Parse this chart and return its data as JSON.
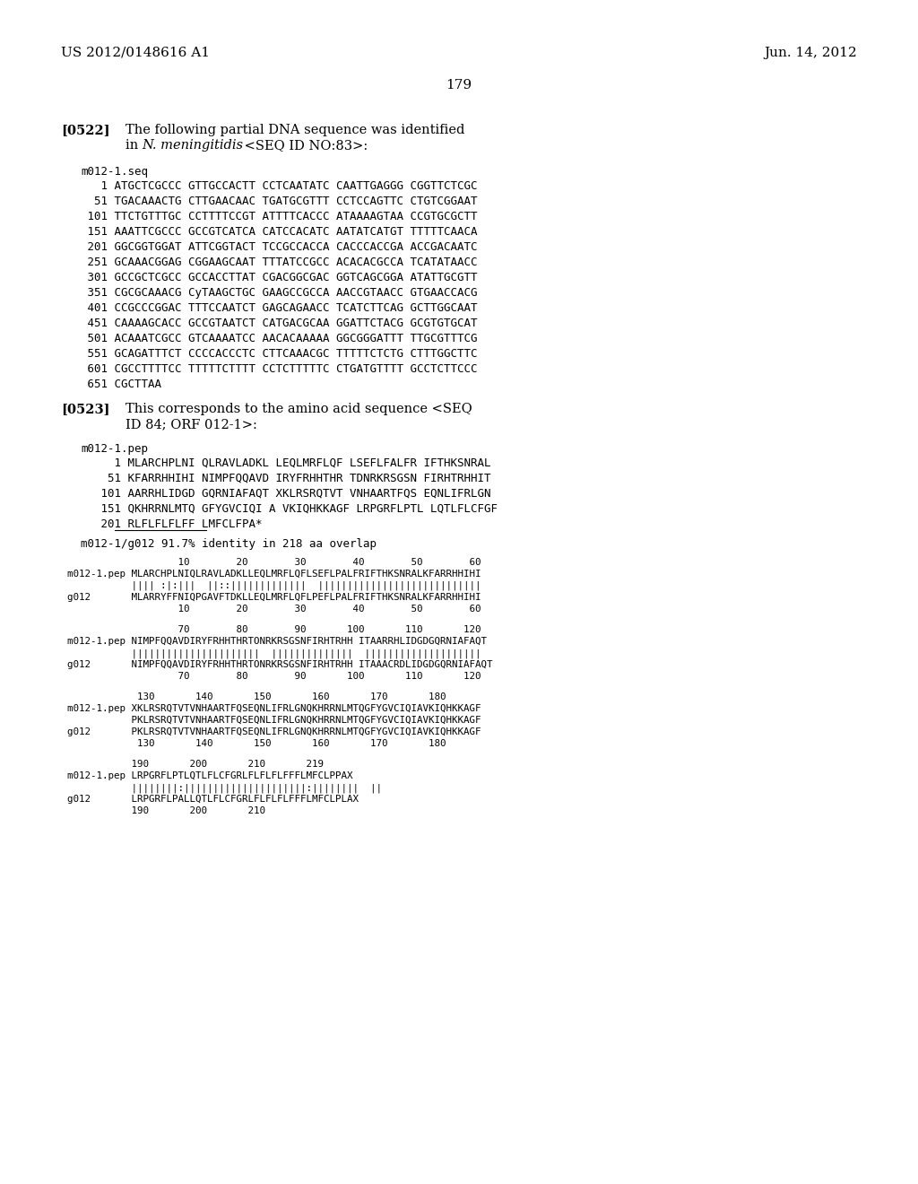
{
  "background_color": "#ffffff",
  "header_left": "US 2012/0148616 A1",
  "header_right": "Jun. 14, 2012",
  "page_number": "179",
  "para522_label": "[0522]",
  "para522_line1": "The following partial DNA sequence was identified",
  "para522_line2_normal": "in ",
  "para522_line2_italic": "N. meningitidis",
  "para522_line2_end": " <SEQ ID NO:83>:",
  "seq_name": "m012-1.seq",
  "dna_lines": [
    "   1 ATGCTCGCCC GTTGCCACTT CCTCAATATC CAATTGAGGG CGGTTCTCGC",
    "  51 TGACAAACTG CTTGAACAAC TGATGCGTTT CCTCCAGTTC CTGTCGGAAT",
    " 101 TTCTGTTTGC CCTTTTCCGT ATTTTCACCC ATAAAAGTAA CCGTGCGCTT",
    " 151 AAATTCGCCC GCCGTCATCA CATCCACATC AATATCATGT TTTTTCAACA",
    " 201 GGCGGTGGAT ATTCGGTACT TCCGCCACCA CACCCACCGA ACCGACAATC",
    " 251 GCAAACGGAG CGGAAGCAAT TTTATCCGCC ACACACGCCA TCATATAACC",
    " 301 GCCGCTCGCC GCCACCTTAT CGACGGCGAC GGTCAGCGGA ATATTGCGTT",
    " 351 CGCGCAAACG CyTAAGCTGC GAAGCCGCCA AACCGTAACC GTGAACCACG",
    " 401 CCGCCCGGAC TTTCCAATCT GAGCAGAACC TCATCTTCAG GCTTGGCAAT",
    " 451 CAAAAGCACC GCCGTAATCT CATGACGCAA GGATTCTACG GCGTGTGCAT",
    " 501 ACAAATCGCC GTCAAAATCC AACACAAAAA GGCGGGATTT TTGCGTTTCG",
    " 551 GCAGATTTCT CCCCACCCTC CTTCAAACGC TTTTTCTCTG CTTTGGCTTC",
    " 601 CGCCTTTTCC TTTTTCTTTT CCTCTTTTTC CTGATGTTTT GCCTCTTCCC",
    " 651 CGCTTAA"
  ],
  "para523_label": "[0523]",
  "para523_line1": "This corresponds to the amino acid sequence <SEQ",
  "para523_line2": "ID 84; ORF 012-1>:",
  "pep_name": "m012-1.pep",
  "pep_lines": [
    "     1 MLARCHPLNI QLRAVLADKL LEQLMRFLQF LSEFLFALFR IFTHKSNRAL",
    "    51 KFARRHHIHI NIMPFQQAVD IRYFRHHTHR TDNRKRSGSN FIRHTRHHIT",
    "   101 AARRHLIDGD GQRNIAFAQT XKLRSRQTVT VNHAARTFQS EQNLIFRLGN",
    "   151 QKHRRNLMTQ GFYGVCIQI A VKIQHKKAGF LRPGRFLPTL LQTLFLCFGF",
    "   201 RLFLFLFLFF LMFCLFPA*"
  ],
  "underline_pep201": true,
  "identity_line": "m012-1/g012 91.7% identity in 218 aa overlap",
  "align_blocks": [
    [
      "                   10        20        30        40        50        60",
      "m012-1.pep MLARCHPLNIQLRAVLADKLLEQLMRFLQFLSEFLPALFRIFTHKSNRALKFARRHHIHI",
      "           |||| :|:|||  ||::|||||||||||||  ||||||||||||||||||||||||||||",
      "g012       MLARRYFFNIQPGAVFTDKLLEQLMRFLQFLPEFLPALFRIFTHKSNRALKFARRHHIHI",
      "                   10        20        30        40        50        60"
    ],
    [
      "                   70        80        90       100       110       120",
      "m012-1.pep NIMPFQQAVDIRYFRHHTHRTONRKRSGSNFIRHTRHH ITAARRHLIDGDGQRNIAFAQT",
      "           ||||||||||||||||||||||  ||||||||||||||  ||||||||||||||||||||",
      "g012       NIMPFQQAVDIRYFRHHTHRTONRKRSGSNFIRHTRHH ITAAACRDLIDGDGQRNIAFAQT",
      "                   70        80        90       100       110       120"
    ],
    [
      "            130       140       150       160       170       180",
      "m012-1.pep XKLRSRQTVTVNHAARTFQSEQNLIFRLGNQKHRRNLMTQGFYGVCIQIAVKIQHKKAGF",
      "           PKLRSRQTVTVNHAARTFQSEQNLIFRLGNQKHRRNLMTQGFYGVCIQIAVKIQHKKAGF",
      "g012       PKLRSRQTVTVNHAARTFQSEQNLIFRLGNQKHRRNLMTQGFYGVCIQIAVKIQHKKAGF",
      "            130       140       150       160       170       180"
    ],
    [
      "           190       200       210       219",
      "m012-1.pep LRPGRFLPTLQTLFLCFGRLFLFLFLFFFLMFCLPPAX",
      "           ||||||||:|||||||||||||||||||||:||||||||  ||",
      "g012       LRPGRFLPALLQTLFLCFGRLFLFLFLFFFLMFCLPLAX",
      "           190       200       210"
    ]
  ]
}
